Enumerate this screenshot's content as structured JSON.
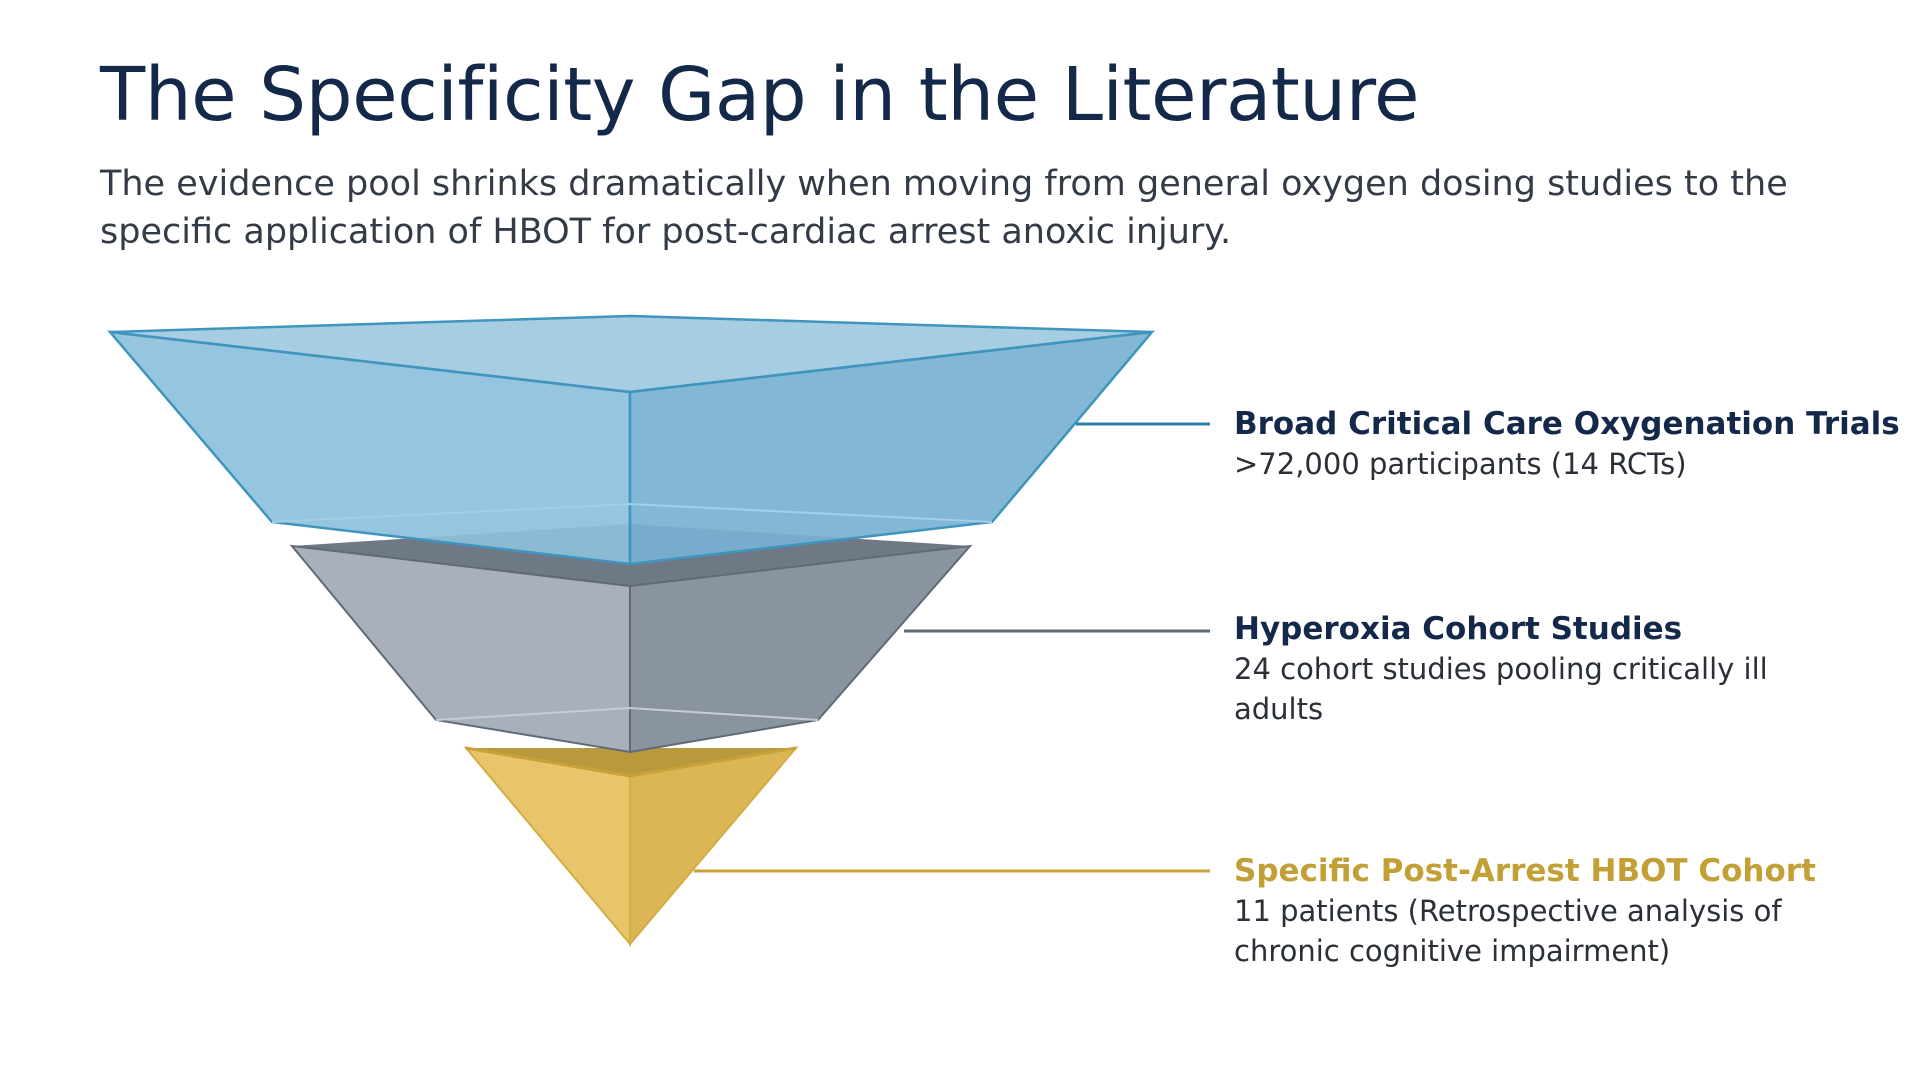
{
  "header": {
    "title": "The Specificity Gap in the Literature",
    "subtitle_lines": [
      "The evidence pool shrinks dramatically when moving from general oxygen dosing studies to the",
      "specific application of HBOT for post-cardiac arrest anoxic injury."
    ]
  },
  "levels": [
    {
      "title": "Broad Critical Care Oxygenation Trials",
      "desc_lines": [
        ">72,000 participants (14 RCTs)"
      ],
      "color": "#14294a"
    },
    {
      "title": "Hyperoxia Cohort Studies",
      "desc_lines": [
        "24 cohort studies pooling critically ill",
        "adults"
      ],
      "color": "#14294a"
    },
    {
      "title": "Specific Post-Arrest HBOT Cohort",
      "desc_lines": [
        "11 patients (Retrospective analysis of",
        "chronic cognitive impairment)"
      ],
      "color": "#c2a035"
    }
  ]
}
